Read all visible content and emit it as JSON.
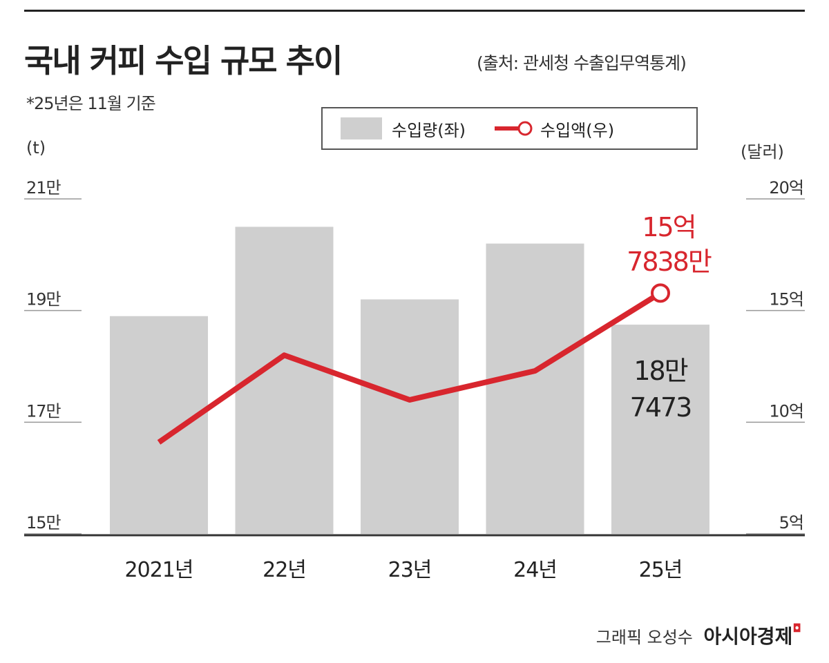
{
  "header": {
    "title": "국내 커피 수입 규모 추이",
    "source": "(출처: 관세청 수출입무역통계)",
    "note": "*25년은 11월 기준"
  },
  "credit": {
    "author": "그래픽 오성수",
    "logo": "아시아경제"
  },
  "colors": {
    "bar": "#cfcfcf",
    "line": "#d8262e",
    "text": "#222222"
  },
  "chart_data": {
    "type": "bar+line",
    "categories": [
      "2021년",
      "22년",
      "23년",
      "24년",
      "25년"
    ],
    "left_axis": {
      "unit": "(t)",
      "ylim": [
        150000,
        210000
      ],
      "ticks": [
        "15만",
        "17만",
        "19만",
        "21만"
      ]
    },
    "right_axis": {
      "unit": "(달러)",
      "ylim": [
        500000000,
        2000000000
      ],
      "ticks": [
        "5억",
        "10억",
        "15억",
        "20억"
      ]
    },
    "legend": {
      "bar_label": "수입량(좌)",
      "line_label": "수입액(우)",
      "placement": "top-right"
    },
    "series": [
      {
        "name": "수입량(좌)",
        "type": "bar",
        "axis": "left",
        "values": [
          189000,
          205000,
          192000,
          202000,
          187473
        ]
      },
      {
        "name": "수입액(우)",
        "type": "line",
        "axis": "right",
        "values": [
          910000000,
          1300000000,
          1100000000,
          1230000000,
          1578380000
        ]
      }
    ],
    "annotations": {
      "bar_last": [
        "18만",
        "7473"
      ],
      "line_last": [
        "15억",
        "7838만"
      ]
    }
  }
}
